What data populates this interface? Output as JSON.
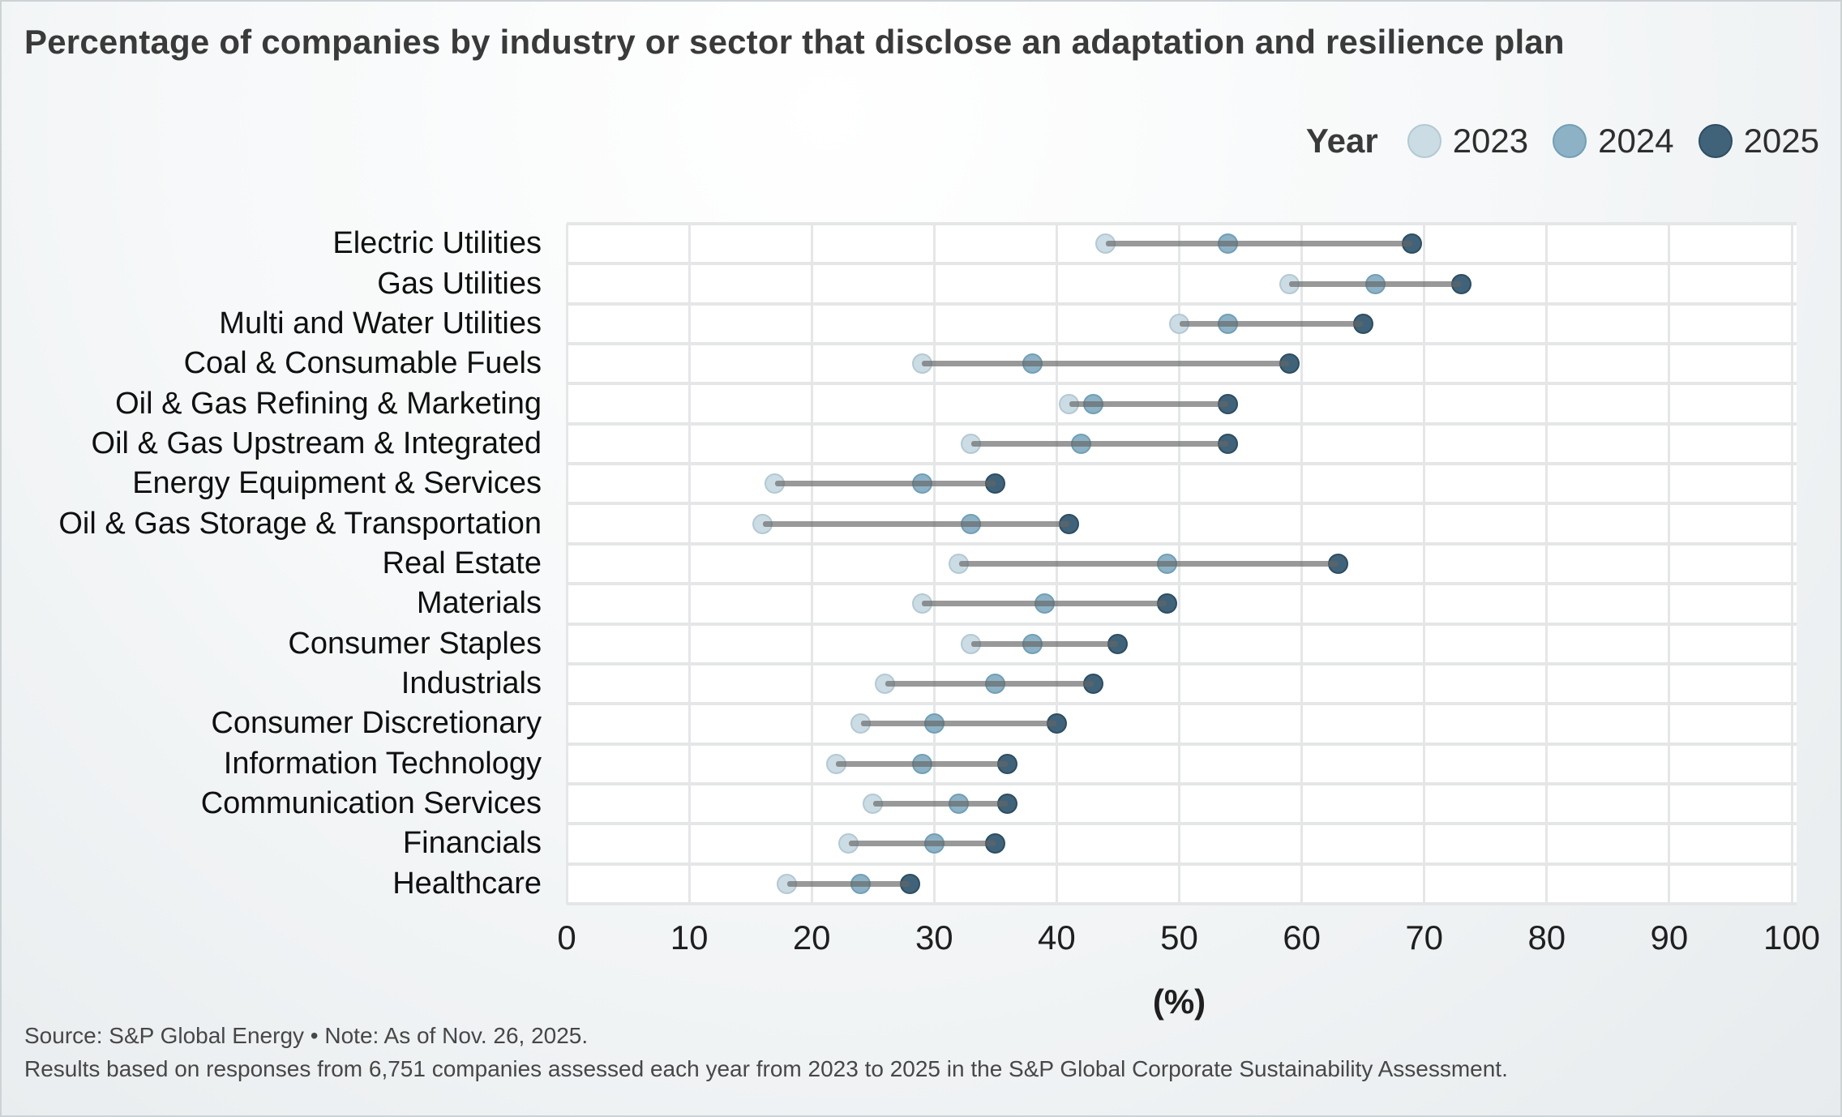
{
  "title": "Percentage of companies by industry or sector that disclose an adaptation and resilience plan",
  "legend": {
    "label": "Year",
    "items": [
      {
        "label": "2023",
        "color": "#ccdce4",
        "stroke": "#b3c9d4"
      },
      {
        "label": "2024",
        "color": "#8db2c5",
        "stroke": "#729fb6"
      },
      {
        "label": "2025",
        "color": "#40637a",
        "stroke": "#2e4d62"
      }
    ]
  },
  "axis": {
    "ticks": [
      0,
      10,
      20,
      30,
      40,
      50,
      60,
      70,
      80,
      90,
      100
    ],
    "xlabel": "(%)"
  },
  "footer": {
    "line1": "Source: S&P Global Energy • Note: As of Nov. 26, 2025.",
    "line2": "Results based on responses from 6,751 companies assessed each year from 2023 to 2025 in the S&P Global Corporate Sustainability Assessment."
  },
  "chart_data": {
    "type": "scatter",
    "subtype": "dumbbell-dot-plot",
    "title": "Percentage of companies by industry or sector that disclose an adaptation and resilience plan",
    "xlabel": "(%)",
    "xlim": [
      0,
      100
    ],
    "grid": true,
    "legend_position": "top-right",
    "categories": [
      "Electric Utilities",
      "Gas Utilities",
      "Multi and Water Utilities",
      "Coal & Consumable Fuels",
      "Oil & Gas Refining & Marketing",
      "Oil & Gas Upstream & Integrated",
      "Energy Equipment & Services",
      "Oil & Gas Storage & Transportation",
      "Real Estate",
      "Materials",
      "Consumer Staples",
      "Industrials",
      "Consumer Discretionary",
      "Information Technology",
      "Communication Services",
      "Financials",
      "Healthcare"
    ],
    "series": [
      {
        "name": "2023",
        "color": "#ccdce4",
        "values": [
          44,
          59,
          50,
          29,
          41,
          33,
          17,
          16,
          32,
          29,
          33,
          26,
          24,
          22,
          25,
          23,
          18
        ]
      },
      {
        "name": "2024",
        "color": "#8db2c5",
        "values": [
          54,
          66,
          54,
          38,
          43,
          42,
          29,
          33,
          49,
          39,
          38,
          35,
          30,
          29,
          32,
          30,
          24
        ]
      },
      {
        "name": "2025",
        "color": "#40637a",
        "values": [
          69,
          73,
          65,
          59,
          54,
          54,
          35,
          41,
          63,
          49,
          45,
          43,
          40,
          36,
          36,
          35,
          28
        ]
      }
    ]
  }
}
